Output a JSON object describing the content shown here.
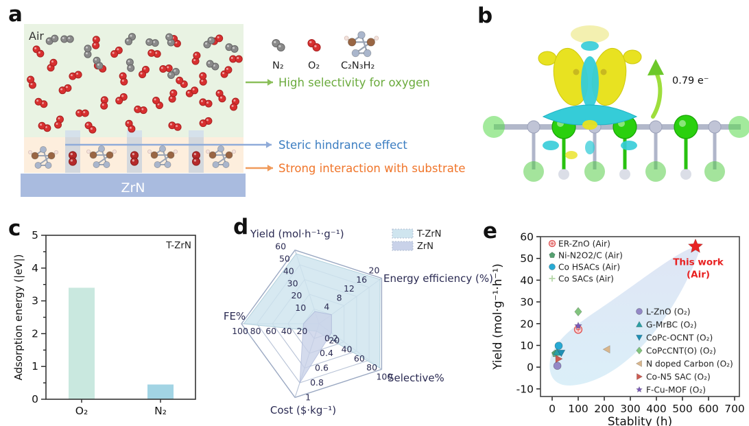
{
  "figure": {
    "panel_labels": {
      "a": "a",
      "b": "b",
      "c": "c",
      "d": "d",
      "e": "e"
    }
  },
  "panel_a": {
    "air_label": "Air",
    "substrate_label": "ZrN",
    "molecule_legend": [
      {
        "id": "n2-molecule",
        "label": "N₂",
        "color": "#8a8a8a"
      },
      {
        "id": "o2-molecule",
        "label": "O₂",
        "color": "#d83030"
      },
      {
        "id": "c2n3h2-molecule",
        "label": "C₂N₃H₂",
        "color": "#996644"
      }
    ],
    "annotations": [
      {
        "text": "High selectivity for oxygen",
        "color": "#6aaa3c",
        "arrow_color": "#8bbf5a"
      },
      {
        "text": "Steric hindrance effect",
        "color": "#3b7dc1",
        "arrow_color": "#8fabd9"
      },
      {
        "text": "Strong interaction with substrate",
        "color": "#f0752a",
        "arrow_color": "#f09a5a"
      }
    ],
    "colors": {
      "air_box": "#e9f3e3",
      "layer_strip": "#fdeedd",
      "substrate_bar": "#a9bbdf",
      "slot": "#ccd3dd"
    }
  },
  "panel_b": {
    "charge_transfer_label": "0.79 e⁻",
    "isosurface_colors": {
      "accumulation": "#e8e221",
      "depletion": "#35ccd8"
    }
  },
  "chart_data": [
    {
      "panel": "c",
      "type": "bar",
      "annotation": "T-ZrN",
      "categories": [
        "O₂",
        "N₂"
      ],
      "values": [
        3.4,
        0.45
      ],
      "bar_colors": [
        "#c9e8df",
        "#a2d4e4"
      ],
      "xlabel": "",
      "ylabel": "Adsorption energy (|eV|)",
      "ylim": [
        0,
        5
      ],
      "yticks": [
        0,
        1,
        2,
        3,
        4,
        5
      ]
    },
    {
      "panel": "d",
      "type": "radar",
      "axes": [
        {
          "label": "Yield (mol·h⁻¹·g⁻¹)",
          "max": 60,
          "ticks": [
            10,
            20,
            30,
            40,
            50,
            60
          ]
        },
        {
          "label": "Energy efficiency (%)",
          "max": 20,
          "ticks": [
            4,
            8,
            12,
            16,
            20
          ]
        },
        {
          "label": "Selective%",
          "max": 100,
          "ticks": [
            20,
            40,
            60,
            80,
            100
          ]
        },
        {
          "label": "Cost ($·kg⁻¹)",
          "max": 1.0,
          "ticks": [
            0.2,
            0.4,
            0.6,
            0.8,
            1.0
          ]
        },
        {
          "label": "FE%",
          "max": 100,
          "ticks": [
            20,
            40,
            60,
            80,
            100
          ]
        }
      ],
      "series": [
        {
          "name": "T-ZrN",
          "values": [
            57,
            19.5,
            97,
            0.1,
            97
          ],
          "fill": "#cfe5ef",
          "stroke": "#a3c8d6"
        },
        {
          "name": "ZrN",
          "values": [
            10,
            4,
            20,
            0.8,
            20
          ],
          "fill": "#c9d2e9",
          "stroke": "#aab6d8"
        }
      ],
      "legend_position": "top-right"
    },
    {
      "panel": "e",
      "type": "scatter",
      "xlabel": "Stablity (h)",
      "ylabel": "Yield (mol·g⁻¹·h⁻¹)",
      "xlim": [
        -45,
        720
      ],
      "ylim": [
        -13,
        60
      ],
      "xticks": [
        0,
        100,
        200,
        300,
        400,
        500,
        600,
        700
      ],
      "yticks": [
        -10,
        0,
        10,
        20,
        30,
        40,
        50,
        60
      ],
      "highlight": {
        "name": "This work",
        "label_lines": [
          "This work",
          "(Air)"
        ],
        "x": 550,
        "y": 55.5,
        "marker": "star",
        "color": "#e82222"
      },
      "series": [
        {
          "name": "ER-ZnO (Air)",
          "x": 100,
          "y": 17.3,
          "marker": "circle-open",
          "color": "#e05050",
          "legend": "left"
        },
        {
          "name": "Ni-N2O2/C (Air)",
          "x": 12,
          "y": 6.2,
          "marker": "pentagon",
          "color": "#55a070",
          "legend": "left"
        },
        {
          "name": "Co HSACs (Air)",
          "x": 25,
          "y": 9.8,
          "marker": "circle",
          "color": "#28aad4",
          "legend": "left"
        },
        {
          "name": "Co SACs (Air)",
          "x": 15,
          "y": 5.5,
          "marker": "plus",
          "color": "#b5d6a8",
          "legend": "left"
        },
        {
          "name": "L-ZnO (O₂)",
          "x": 20,
          "y": 0.6,
          "marker": "circle",
          "color": "#9388c6",
          "legend": "right"
        },
        {
          "name": "G-MrBC (O₂)",
          "x": 18,
          "y": 6.8,
          "marker": "triangle-up",
          "color": "#2ca0a4",
          "legend": "right"
        },
        {
          "name": "CoPc-OCNT (O₂)",
          "x": 35,
          "y": 6.5,
          "marker": "triangle-down",
          "color": "#1f8fb4",
          "legend": "right"
        },
        {
          "name": "CoPcCNT(O) (O₂)",
          "x": 100,
          "y": 25.5,
          "marker": "diamond",
          "color": "#82c47e",
          "legend": "right"
        },
        {
          "name": "N doped Carbon (O₂)",
          "x": 210,
          "y": 8.2,
          "marker": "triangle-left",
          "color": "#d9b68c",
          "legend": "right"
        },
        {
          "name": "Co-N5 SAC (O₂)",
          "x": 25,
          "y": 3.8,
          "marker": "triangle-right",
          "color": "#cc5b52",
          "legend": "right"
        },
        {
          "name": "F-Cu-MOF (O₂)",
          "x": 100,
          "y": 19,
          "marker": "star",
          "color": "#7a5ab8",
          "legend": "right"
        }
      ]
    }
  ]
}
